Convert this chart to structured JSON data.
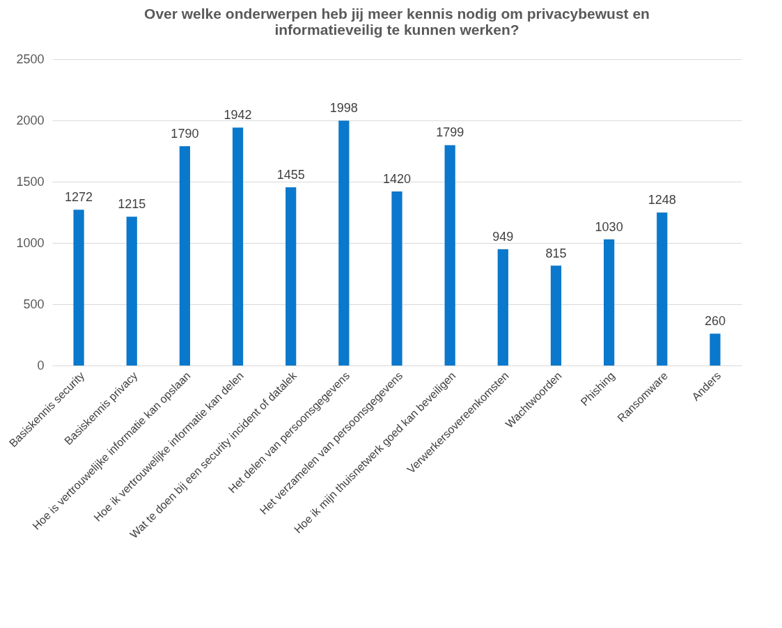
{
  "chart_data": {
    "type": "bar",
    "title": "Over welke onderwerpen heb jij meer kennis nodig om privacybewust en informatieveilig te kunnen werken?",
    "categories": [
      "Basiskennis security",
      "Basiskennis privacy",
      "Hoe is vertrouwelijke informatie kan opslaan",
      "Hoe ik vertrouwelijke informatie kan delen",
      "Wat te doen bij een security incident of datalek",
      "Het delen van persoonsgegevens",
      "Het verzamelen van persoonsgegevens",
      "Hoe ik mijn thuisnetwerk goed kan beveiligen",
      "Verwerkersovereenkomsten",
      "Wachtwoorden",
      "Phishing",
      "Ransomware",
      "Anders"
    ],
    "values": [
      1272,
      1215,
      1790,
      1942,
      1455,
      1998,
      1420,
      1799,
      949,
      815,
      1030,
      1248,
      260
    ],
    "color": "#0a78cc",
    "ylim": [
      0,
      2500
    ],
    "yticks": [
      0,
      500,
      1000,
      1500,
      2000,
      2500
    ],
    "grid": "y",
    "data_labels": true
  }
}
